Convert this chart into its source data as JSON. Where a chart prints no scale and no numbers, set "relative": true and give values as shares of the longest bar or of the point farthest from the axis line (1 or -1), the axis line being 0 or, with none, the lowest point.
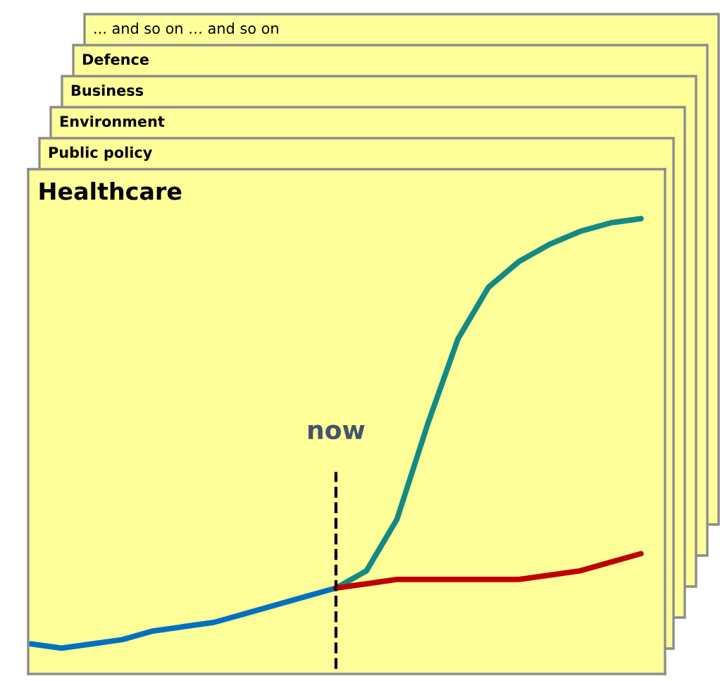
{
  "chart_data": {
    "type": "line",
    "title": "Healthcare",
    "relative": true,
    "categories": [
      null,
      null,
      null,
      null,
      null,
      null,
      null,
      null,
      null,
      null,
      null,
      null,
      null,
      null,
      null,
      null,
      null,
      null,
      null,
      null,
      null
    ],
    "series": [
      {
        "color": "#0070c0",
        "values": [
          0.01,
          0.0,
          0.01,
          0.02,
          0.04,
          0.05,
          0.06,
          0.08,
          0.1,
          0.12,
          0.14,
          null,
          null,
          null,
          null,
          null,
          null,
          null,
          null,
          null,
          null
        ]
      },
      {
        "color": "#138a83",
        "values": [
          null,
          null,
          null,
          null,
          null,
          null,
          null,
          null,
          null,
          null,
          0.14,
          0.18,
          0.3,
          0.52,
          0.72,
          0.84,
          0.9,
          0.94,
          0.97,
          0.99,
          1.0
        ]
      },
      {
        "color": "#c00000",
        "values": [
          null,
          null,
          null,
          null,
          null,
          null,
          null,
          null,
          null,
          null,
          0.14,
          0.15,
          0.16,
          0.16,
          0.16,
          0.16,
          0.16,
          0.17,
          0.18,
          0.2,
          0.22
        ]
      }
    ],
    "annotations": [
      "... and so on … and so on",
      "Defence",
      "Business",
      "Environment",
      "Public policy",
      "now"
    ]
  }
}
